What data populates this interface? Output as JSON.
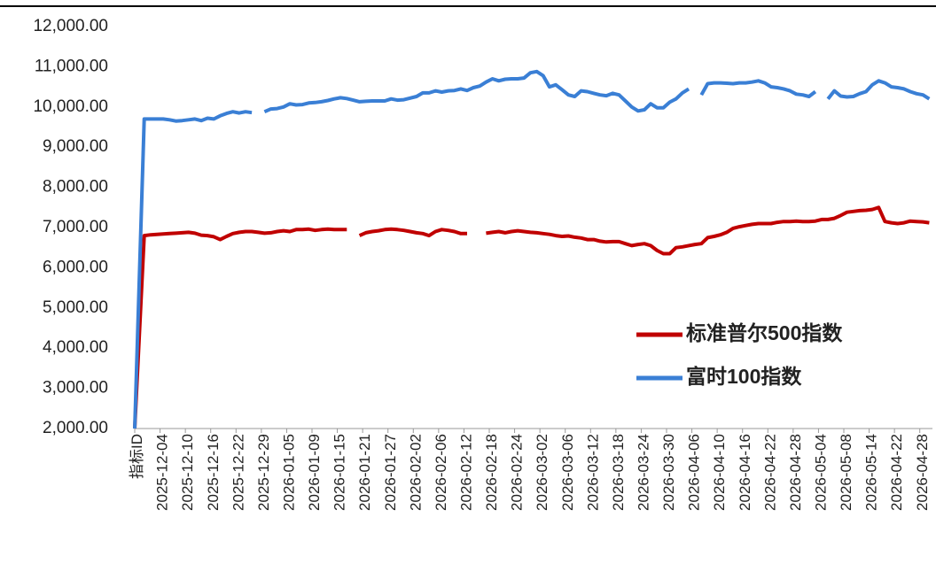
{
  "chart_data": {
    "type": "line",
    "categories": [
      "指标ID",
      null,
      null,
      null,
      "2025-12-04",
      null,
      null,
      null,
      "2025-12-10",
      null,
      null,
      null,
      "2025-12-16",
      null,
      null,
      null,
      "2025-12-22",
      null,
      null,
      null,
      "2025-12-29",
      null,
      null,
      null,
      "2026-01-05",
      null,
      null,
      null,
      "2026-01-09",
      null,
      null,
      null,
      "2026-01-15",
      null,
      null,
      null,
      "2026-01-21",
      null,
      null,
      null,
      "2026-01-27",
      null,
      null,
      null,
      "2026-02-02",
      null,
      null,
      null,
      "2026-02-06",
      null,
      null,
      null,
      "2026-02-12",
      null,
      null,
      null,
      "2026-02-18",
      null,
      null,
      null,
      "2026-02-24",
      null,
      null,
      null,
      "2026-03-02",
      null,
      null,
      null,
      "2026-03-06",
      null,
      null,
      null,
      "2026-03-12",
      null,
      null,
      null,
      "2026-03-18",
      null,
      null,
      null,
      "2026-03-24",
      null,
      null,
      null,
      "2026-03-30",
      null,
      null,
      null,
      "2026-04-06",
      null,
      null,
      null,
      "2026-04-10",
      null,
      null,
      null,
      "2026-04-16",
      null,
      null,
      null,
      "2026-04-22",
      null,
      null,
      null,
      "2026-04-28",
      null,
      null,
      null,
      "2026-05-04",
      null,
      null,
      null,
      "2026-05-08",
      null,
      null,
      null,
      "2026-05-14",
      null,
      null,
      null,
      "2026-04-22",
      null,
      null,
      null,
      "2026-04-28",
      null
    ],
    "series": [
      {
        "name": "标准普尔500指数",
        "color": "#c00000",
        "values": [
          2000,
          6800,
          6820,
          6830,
          6840,
          6850,
          6860,
          6870,
          6880,
          6860,
          6810,
          6800,
          6770,
          6700,
          6780,
          6850,
          6880,
          6900,
          6900,
          6880,
          6860,
          6870,
          6900,
          6920,
          6900,
          6950,
          6950,
          6960,
          6930,
          6950,
          6960,
          6950,
          6950,
          6950,
          null,
          6800,
          6870,
          6900,
          6920,
          6950,
          6960,
          6950,
          6930,
          6900,
          6870,
          6850,
          6800,
          6900,
          6950,
          6930,
          6900,
          6850,
          6850,
          null,
          null,
          6860,
          6880,
          6900,
          6870,
          6900,
          6920,
          6900,
          6880,
          6870,
          6850,
          6830,
          6800,
          6780,
          6790,
          6760,
          6740,
          6700,
          6700,
          6660,
          6640,
          6650,
          6650,
          6600,
          6550,
          6580,
          6600,
          6550,
          6430,
          6350,
          6350,
          6500,
          6520,
          6550,
          6580,
          6600,
          6750,
          6780,
          6820,
          6880,
          6980,
          7020,
          7050,
          7080,
          7100,
          7100,
          7100,
          7130,
          7150,
          7150,
          7160,
          7150,
          7150,
          7160,
          7200,
          7200,
          7230,
          7300,
          7380,
          7400,
          7420,
          7430,
          7450,
          7500,
          7150,
          7120,
          7100,
          7120,
          7160,
          7150,
          7140,
          7120
        ]
      },
      {
        "name": "富时100指数",
        "color": "#3a7fd5",
        "values": [
          2000,
          9700,
          9700,
          9700,
          9700,
          9680,
          9650,
          9660,
          9680,
          9700,
          9660,
          9720,
          9700,
          9780,
          9840,
          9880,
          9850,
          9880,
          9860,
          null,
          9880,
          9950,
          9960,
          10000,
          10080,
          10050,
          10060,
          10100,
          10110,
          10130,
          10160,
          10200,
          10230,
          10210,
          10170,
          10130,
          10140,
          10150,
          10150,
          10150,
          10200,
          10170,
          10180,
          10220,
          10260,
          10350,
          10350,
          10400,
          10370,
          10400,
          10410,
          10450,
          10410,
          10480,
          10520,
          10620,
          10700,
          10650,
          10690,
          10700,
          10700,
          10720,
          10850,
          10880,
          10780,
          10500,
          10550,
          10430,
          10300,
          10260,
          10400,
          10380,
          10340,
          10300,
          10280,
          10340,
          10300,
          10150,
          10000,
          9900,
          9930,
          10080,
          9980,
          9980,
          10120,
          10200,
          10350,
          10450,
          null,
          10300,
          10580,
          10600,
          10600,
          10590,
          10580,
          10600,
          10600,
          10620,
          10650,
          10600,
          10500,
          10480,
          10450,
          10400,
          10320,
          10300,
          10260,
          10380,
          null,
          10200,
          10400,
          10270,
          10250,
          10260,
          10330,
          10380,
          10550,
          10650,
          10600,
          10500,
          10480,
          10450,
          10380,
          10330,
          10300,
          10200
        ]
      }
    ],
    "ylim": [
      2000,
      12000
    ],
    "yticks": [
      {
        "value": 2000,
        "label": "2,000.00"
      },
      {
        "value": 3000,
        "label": "3,000.00"
      },
      {
        "value": 4000,
        "label": "4,000.00"
      },
      {
        "value": 5000,
        "label": "5,000.00"
      },
      {
        "value": 6000,
        "label": "6,000.00"
      },
      {
        "value": 7000,
        "label": "7,000.00"
      },
      {
        "value": 8000,
        "label": "8,000.00"
      },
      {
        "value": 9000,
        "label": "9,000.00"
      },
      {
        "value": 10000,
        "label": "10,000.00"
      },
      {
        "value": 11000,
        "label": "11,000.00"
      },
      {
        "value": 12000,
        "label": "12,000.00"
      }
    ],
    "grid": false,
    "legend": "right"
  }
}
